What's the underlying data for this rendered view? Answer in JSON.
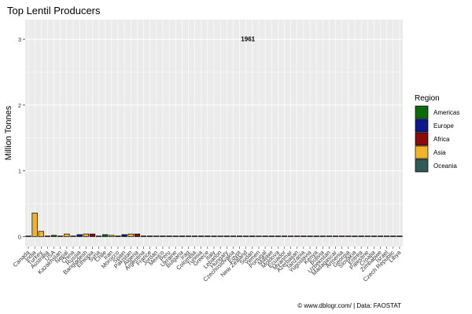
{
  "chart_data": {
    "type": "bar",
    "title": "Top Lentil Producers",
    "ylabel": "Million Tonnes",
    "xlabel": "",
    "year_label": "1961",
    "ylim": [
      -0.15,
      3.3
    ],
    "yticks": [
      0,
      1,
      2,
      3
    ],
    "grid": true,
    "legend": {
      "title": "Region",
      "position": "right",
      "items": [
        {
          "name": "Americas",
          "color": "#0b6b0b"
        },
        {
          "name": "Europe",
          "color": "#0a1a8a"
        },
        {
          "name": "Africa",
          "color": "#8c0a0a"
        },
        {
          "name": "Asia",
          "color": "#f0b428"
        },
        {
          "name": "Oceania",
          "color": "#2f5a55"
        }
      ]
    },
    "categories": [
      "Canada",
      "India",
      "Turkey",
      "Australia",
      "USA",
      "Kazakhstan",
      "Nepal",
      "China",
      "Russia",
      "Bangladesh",
      "Ethiopia",
      "Syria",
      "Chile",
      "Iran",
      "Morocco",
      "Spain",
      "Pakistan",
      "Algeria",
      "Argentina",
      "France",
      "Jordan",
      "Mexico",
      "Peru",
      "Ukraine",
      "Bulgaria",
      "Iraq",
      "Colombia",
      "Tunisia",
      "Greece",
      "Italy",
      "Lebanon",
      "Hungary",
      "Czechoslovakia",
      "Egypt",
      "New Zealand",
      "Sudan",
      "Yemen",
      "Portugal",
      "Malawi",
      "Moldova",
      "Ecuador",
      "Myanmar",
      "Azerbaijan",
      "Tanzania",
      "Yugoslavia",
      "Kenya",
      "Bolivia",
      "Uzbekistan",
      "Madagascar",
      "Armenia",
      "Georgia",
      "Slovakia",
      "Eritrea",
      "Palestine",
      "Croatia",
      "Zimbabwe",
      "Israel",
      "Czech Republic",
      "Libya"
    ],
    "regions": [
      "Americas",
      "Asia",
      "Asia",
      "Oceania",
      "Americas",
      "Asia",
      "Asia",
      "Asia",
      "Europe",
      "Asia",
      "Africa",
      "Asia",
      "Americas",
      "Asia",
      "Africa",
      "Europe",
      "Asia",
      "Africa",
      "Americas",
      "Europe",
      "Asia",
      "Americas",
      "Americas",
      "Europe",
      "Europe",
      "Asia",
      "Americas",
      "Africa",
      "Europe",
      "Europe",
      "Asia",
      "Europe",
      "Europe",
      "Africa",
      "Oceania",
      "Africa",
      "Asia",
      "Europe",
      "Africa",
      "Europe",
      "Americas",
      "Asia",
      "Asia",
      "Africa",
      "Europe",
      "Africa",
      "Americas",
      "Asia",
      "Africa",
      "Asia",
      "Asia",
      "Europe",
      "Africa",
      "Asia",
      "Europe",
      "Africa",
      "Asia",
      "Europe",
      "Africa"
    ],
    "values": [
      0.0,
      0.36,
      0.08,
      0.0,
      0.02,
      0.0,
      0.04,
      0.0,
      0.03,
      0.04,
      0.04,
      0.0,
      0.03,
      0.02,
      0.01,
      0.03,
      0.04,
      0.04,
      0.01,
      0.01,
      0.01,
      0.01,
      0.01,
      0.0,
      0.01,
      0.01,
      0.01,
      0.01,
      0.01,
      0.0,
      0.01,
      0.01,
      0.0,
      0.01,
      0.0,
      0.01,
      0.0,
      0.0,
      0.0,
      0.0,
      0.01,
      0.0,
      0.0,
      0.01,
      0.0,
      0.0,
      0.0,
      0.01,
      0.0,
      0.0,
      0.0,
      0.0,
      0.0,
      0.0,
      0.0,
      0.0,
      0.01,
      0.0,
      0.0
    ]
  },
  "caption": {
    "source": "© www.dblogr.com/  |  Data: FAOSTAT"
  }
}
